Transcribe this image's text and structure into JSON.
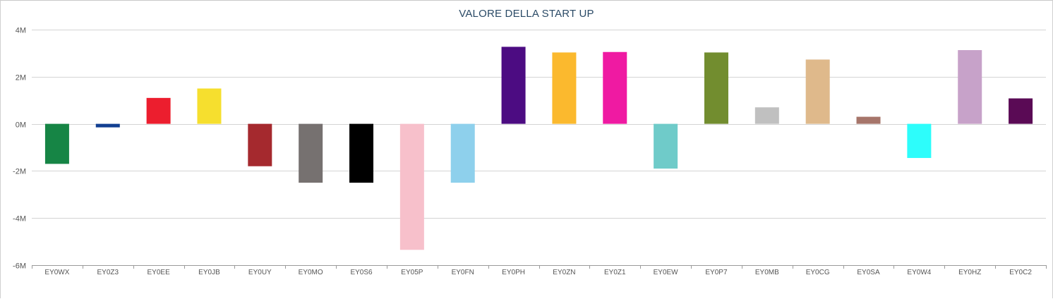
{
  "chart_data": {
    "type": "bar",
    "title": "VALORE DELLA START UP",
    "xlabel": "",
    "ylabel": "",
    "ylim": [
      -6000000,
      4000000
    ],
    "yticks": [
      {
        "value": 4000000,
        "label": "4M"
      },
      {
        "value": 2000000,
        "label": "2M"
      },
      {
        "value": 0,
        "label": "0M"
      },
      {
        "value": -2000000,
        "label": "-2M"
      },
      {
        "value": -4000000,
        "label": "-4M"
      },
      {
        "value": -6000000,
        "label": "-6M"
      }
    ],
    "grid": true,
    "legend": "none",
    "categories": [
      "EY0WX",
      "EY0Z3",
      "EY0EE",
      "EY0JB",
      "EY0UY",
      "EY0MO",
      "EY0S6",
      "EY05P",
      "EY0FN",
      "EY0PH",
      "EY0ZN",
      "EY0Z1",
      "EY0EW",
      "EY0P7",
      "EY0MB",
      "EY0CG",
      "EY0SA",
      "EY0W4",
      "EY0HZ",
      "EY0C2"
    ],
    "values": [
      -1700000,
      -150000,
      1100000,
      1500000,
      -1800000,
      -2500000,
      -2500000,
      -5350000,
      -2500000,
      3270000,
      3030000,
      3050000,
      -1900000,
      3030000,
      700000,
      2730000,
      300000,
      -1450000,
      3130000,
      1080000
    ],
    "colors": [
      "#168545",
      "#123f91",
      "#ec1e2e",
      "#f6df2e",
      "#a5292e",
      "#767170",
      "#000000",
      "#f7c0cb",
      "#8ed0ec",
      "#4c0c82",
      "#fbb92e",
      "#ef1aa2",
      "#6fcbc9",
      "#728d2f",
      "#c0c0c0",
      "#dfb98b",
      "#a6756a",
      "#2dfdfb",
      "#c7a2c9",
      "#5a0a55"
    ]
  }
}
